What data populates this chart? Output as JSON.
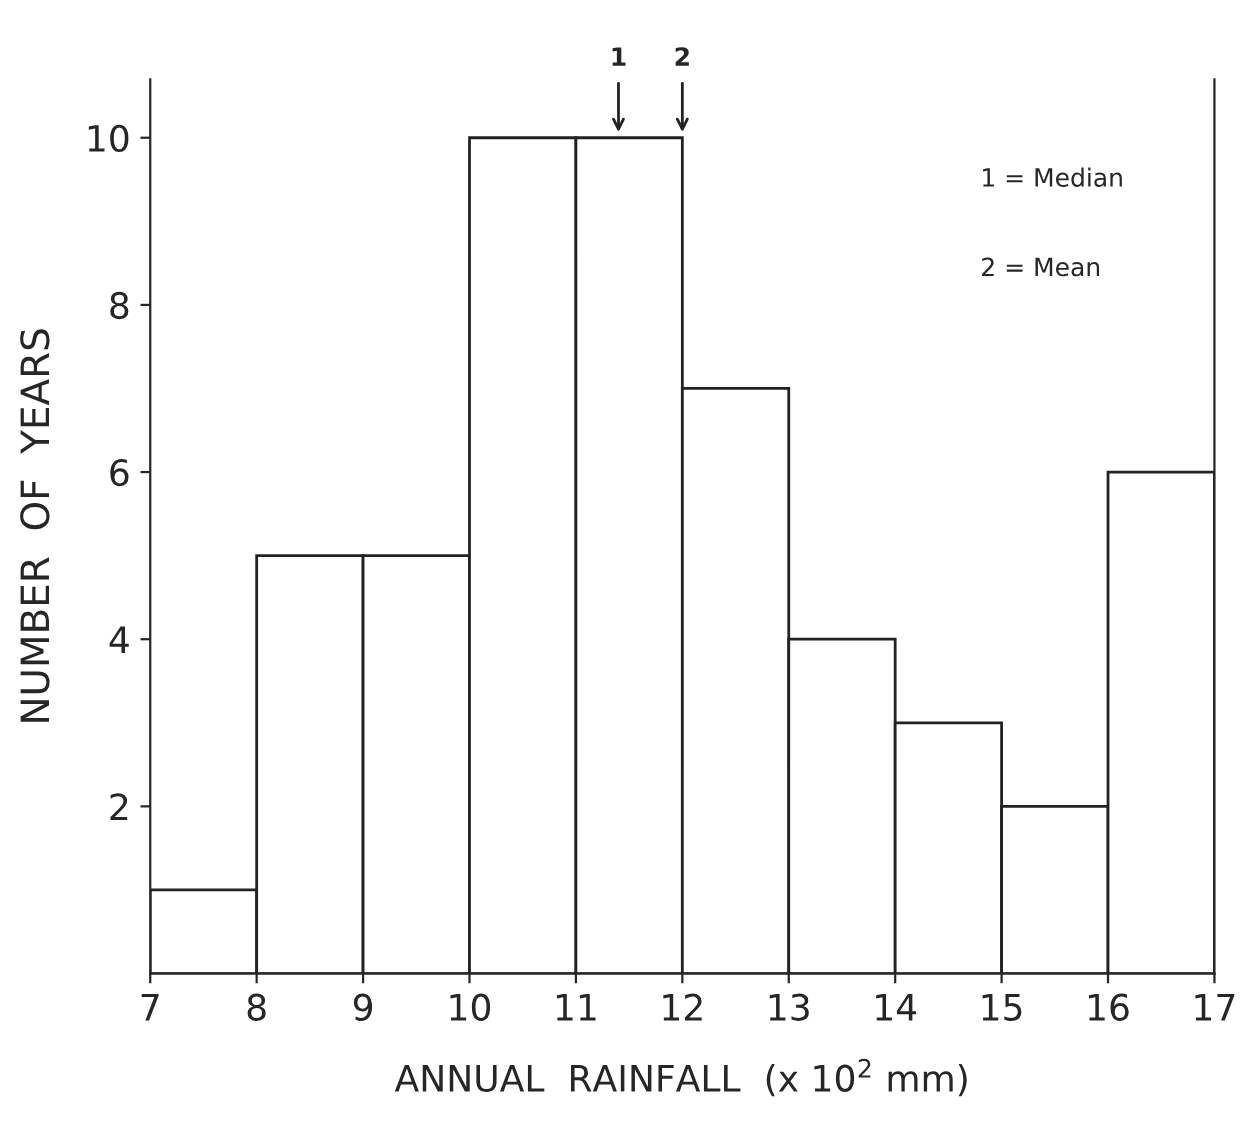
{
  "chart_data": {
    "type": "histogram",
    "xlabel": "ANNUAL  RAINFALL  (x 10$^{2}$ mm)",
    "ylabel": "NUMBER  OF  YEARS",
    "bins": [
      7,
      8,
      9,
      10,
      11,
      12,
      13,
      14,
      15,
      16,
      17
    ],
    "values": [
      1,
      5,
      5,
      10,
      10,
      7,
      4,
      3,
      2,
      6
    ],
    "color": "#ffffff",
    "xlim": [
      7,
      17
    ],
    "ylim": [
      0,
      10.7
    ],
    "xticks": [
      7,
      8,
      9,
      10,
      11,
      12,
      13,
      14,
      15,
      16,
      17
    ],
    "yticks": [
      2,
      4,
      6,
      8,
      10
    ],
    "grid": false,
    "annotations": [
      {
        "text": "1",
        "x": 11.4,
        "y": 10
      },
      {
        "text": "2",
        "x": 12,
        "y": 10
      },
      "1 = Median",
      "2 = Mean"
    ]
  }
}
